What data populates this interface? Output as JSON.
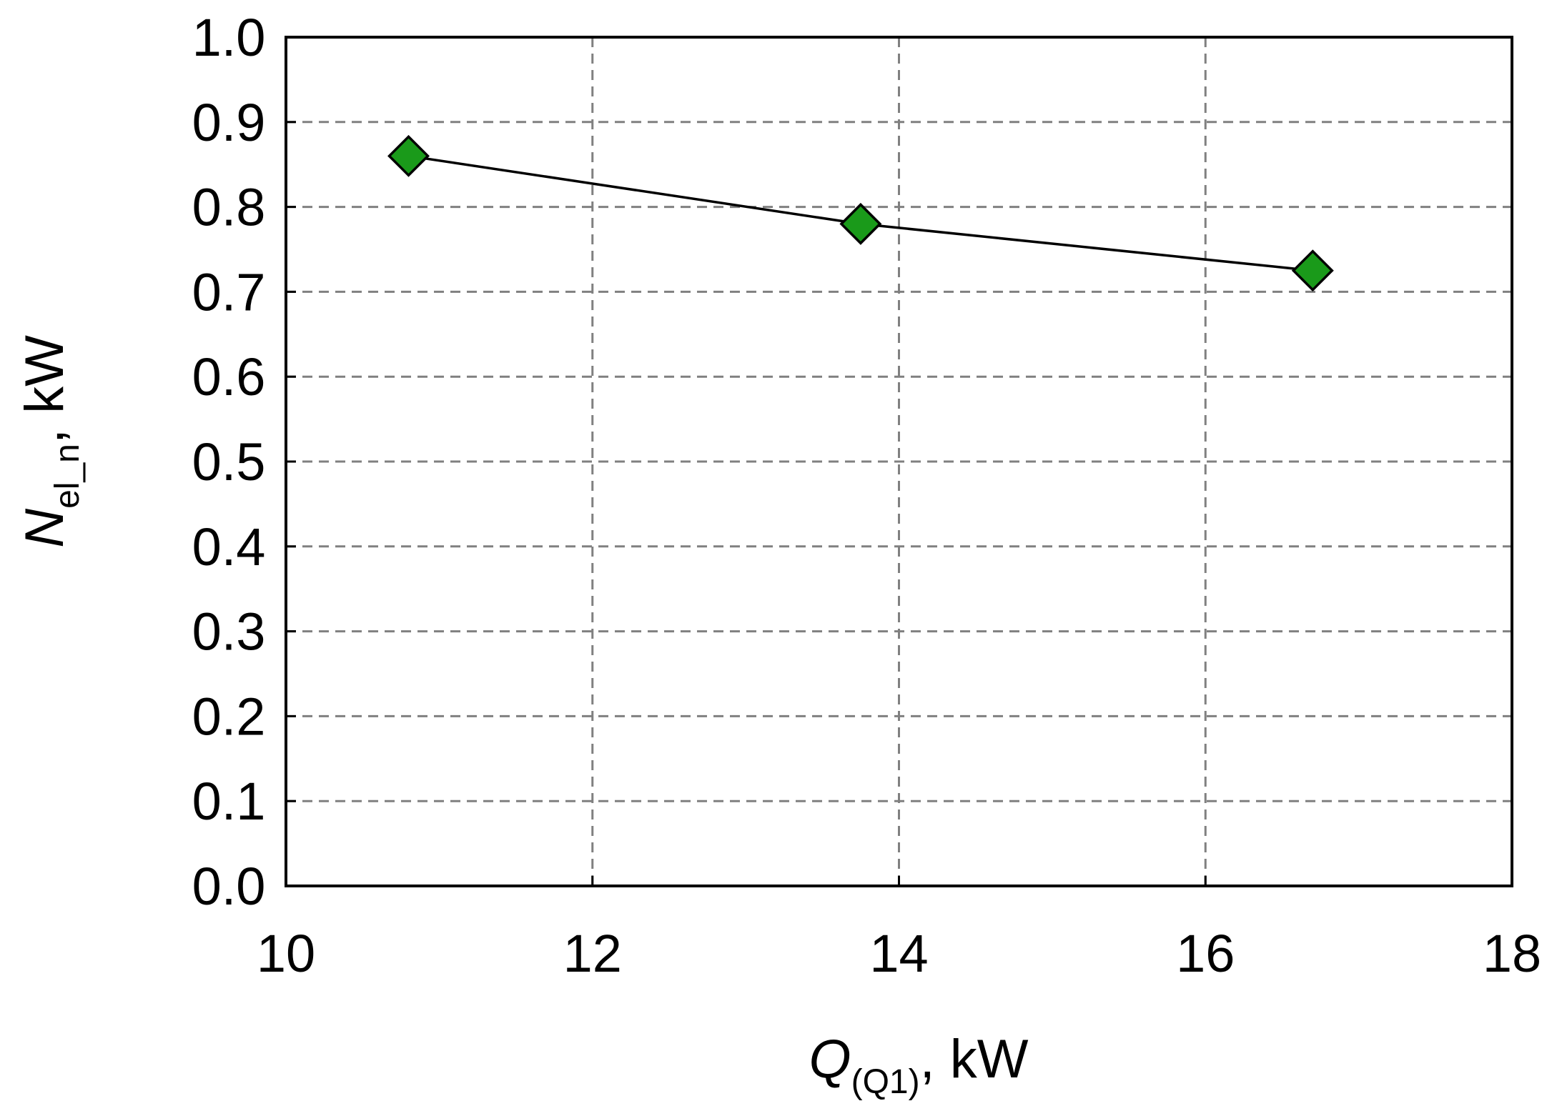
{
  "chart_data": {
    "type": "line",
    "x_axis": {
      "min": 10,
      "max": 18,
      "ticks": [
        10,
        12,
        14,
        16,
        18
      ],
      "tick_labels": [
        "10",
        "12",
        "14",
        "16",
        "18"
      ],
      "label_main": "Q",
      "label_sub": "(Q1)",
      "label_unit": ", kW",
      "grid": true
    },
    "y_axis": {
      "min": 0.0,
      "max": 1.0,
      "ticks": [
        0.0,
        0.1,
        0.2,
        0.3,
        0.4,
        0.5,
        0.6,
        0.7,
        0.8,
        0.9,
        1.0
      ],
      "tick_labels": [
        "0.0",
        "0.1",
        "0.2",
        "0.3",
        "0.4",
        "0.5",
        "0.6",
        "0.7",
        "0.8",
        "0.9",
        "1.0"
      ],
      "label_main": "N",
      "label_sub": "el_n",
      "label_unit": ", kW",
      "grid": true
    },
    "series": [
      {
        "x": [
          10.8,
          13.75,
          16.7
        ],
        "y": [
          0.86,
          0.78,
          0.725
        ],
        "marker": "diamond",
        "marker_color": "#1a9a1a",
        "line_color": "#000000"
      }
    ]
  }
}
